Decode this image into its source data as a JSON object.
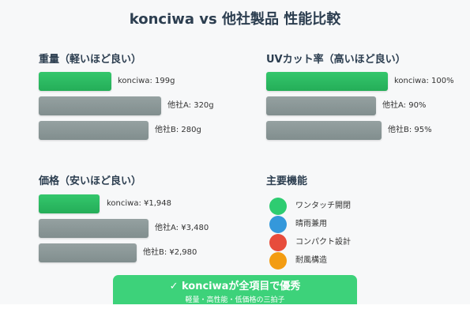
{
  "title": "konciwa vs 他社製品 性能比較",
  "weight": {
    "heading": "重量（軽いほど良い）",
    "items": [
      {
        "label": "konciwa: 199g",
        "value": 199,
        "winner": true
      },
      {
        "label": "他社A: 320g",
        "value": 320,
        "winner": false
      },
      {
        "label": "他社B: 280g",
        "value": 280,
        "winner": false
      }
    ]
  },
  "uv": {
    "heading": "UVカット率（高いほど良い）",
    "items": [
      {
        "label": "konciwa: 100%",
        "value": 100,
        "winner": true
      },
      {
        "label": "他社A: 90%",
        "value": 90,
        "winner": false
      },
      {
        "label": "他社B: 95%",
        "value": 95,
        "winner": false
      }
    ]
  },
  "price": {
    "heading": "価格（安いほど良い）",
    "items": [
      {
        "label": "konciwa: ¥1,948",
        "value": 1948,
        "winner": true
      },
      {
        "label": "他社A: ¥3,480",
        "value": 3480,
        "winner": false
      },
      {
        "label": "他社B: ¥2,980",
        "value": 2980,
        "winner": false
      }
    ]
  },
  "features": {
    "heading": "主要機能",
    "items": [
      {
        "label": "ワンタッチ開閉",
        "color": "#2ecc71",
        "icon": "green-dot-icon"
      },
      {
        "label": "晴雨兼用",
        "color": "#3498db",
        "icon": "blue-dot-icon"
      },
      {
        "label": "コンパクト設計",
        "color": "#e74c3c",
        "icon": "red-dot-icon"
      },
      {
        "label": "耐風構造",
        "color": "#f39c12",
        "icon": "orange-dot-icon"
      }
    ]
  },
  "banner": {
    "main": "✓ konciwaが全項目で優秀",
    "sub": "軽量・高性能・低価格の三拍子"
  },
  "colors": {
    "winner": "#2ecc71",
    "other": "#95a5a6",
    "banner": "#3dd27a"
  }
}
